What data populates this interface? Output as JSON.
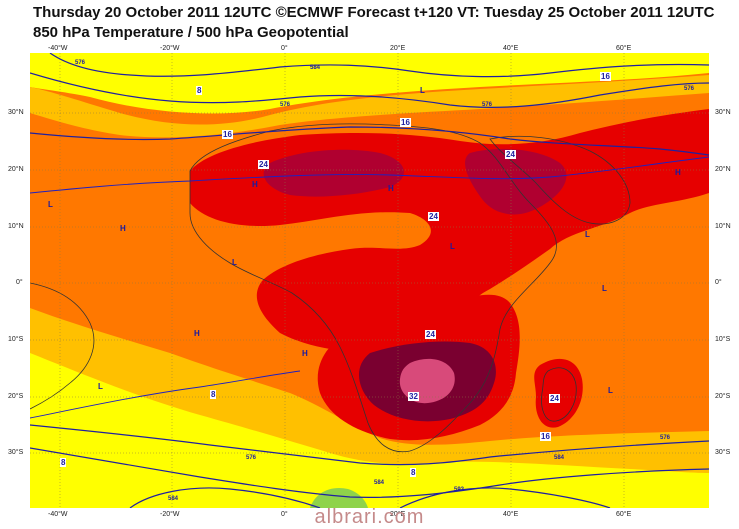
{
  "header": {
    "line1": "Thursday 20 October 2011 12UTC ©ECMWF Forecast t+120 VT: Tuesday 25 October 2011 12UTC",
    "line2": "850 hPa Temperature / 500 hPa Geopotential"
  },
  "axes": {
    "top": [
      "-40°W",
      "-20°W",
      "0°",
      "20°E",
      "40°E",
      "60°E"
    ],
    "bottom": [
      "-40°W",
      "-20°W",
      "0°",
      "20°E",
      "40°E",
      "60°E"
    ],
    "left": [
      "30°N",
      "20°N",
      "10°N",
      "0°",
      "10°S",
      "20°S",
      "30°S"
    ],
    "right": [
      "30°N",
      "20°N",
      "10°N",
      "0°",
      "10°S",
      "20°S",
      "30°S"
    ]
  },
  "temperature_labels": [
    "24",
    "24",
    "24",
    "24",
    "24",
    "32",
    "16",
    "16",
    "16",
    "16",
    "8",
    "8",
    "8",
    "8"
  ],
  "geopotential_labels": [
    "576",
    "576",
    "576",
    "576",
    "584",
    "584",
    "576",
    "576",
    "584",
    "592",
    "584"
  ],
  "pressure_centers": [
    "H",
    "H",
    "H",
    "H",
    "H",
    "H",
    "L",
    "L",
    "L",
    "L",
    "L",
    "L",
    "L",
    "L"
  ],
  "colors": {
    "yellow": "#ffff00",
    "light_orange": "#ffc000",
    "orange": "#ff7800",
    "red": "#e60000",
    "dark_red": "#b00030",
    "maroon": "#7a0030",
    "pink": "#d84a7a",
    "contour": "#2020a0"
  },
  "watermark": "albrari.com"
}
